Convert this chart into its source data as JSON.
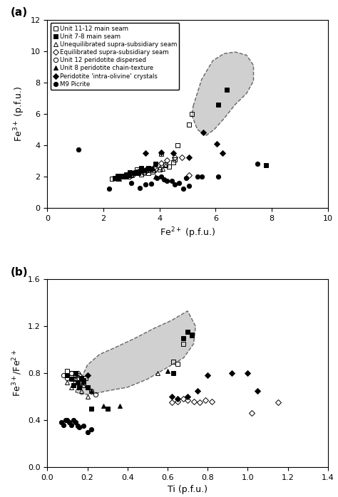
{
  "title_a": "(a)",
  "title_b": "(b)",
  "xlabel_a": "Fe$^{2+}$ (p.f.u.)",
  "ylabel_a": "Fe$^{3+}$ (p.f.u.)",
  "xlabel_b": "Ti (p.f.u.)",
  "ylabel_b": "Fe$^{3+}$/Fe$^{2+}$",
  "xlim_a": [
    0,
    10
  ],
  "ylim_a": [
    0,
    12
  ],
  "xlim_b": [
    0,
    1.4
  ],
  "ylim_b": [
    0,
    1.6
  ],
  "xticks_a": [
    0,
    2,
    4,
    6,
    8,
    10
  ],
  "yticks_a": [
    0,
    2,
    4,
    6,
    8,
    10,
    12
  ],
  "xticks_b": [
    0.0,
    0.2,
    0.4,
    0.6,
    0.8,
    1.0,
    1.2,
    1.4
  ],
  "yticks_b": [
    0.0,
    0.4,
    0.8,
    1.2,
    1.6
  ],
  "unit1112_a": [
    [
      2.3,
      1.85
    ],
    [
      2.5,
      2.05
    ],
    [
      2.65,
      2.05
    ],
    [
      2.8,
      2.15
    ],
    [
      2.9,
      2.0
    ],
    [
      3.05,
      2.2
    ],
    [
      3.2,
      2.45
    ],
    [
      3.35,
      2.15
    ],
    [
      3.6,
      2.2
    ],
    [
      3.75,
      2.3
    ],
    [
      4.0,
      2.45
    ],
    [
      4.05,
      3.45
    ],
    [
      4.2,
      2.75
    ],
    [
      4.35,
      2.65
    ],
    [
      4.5,
      2.9
    ],
    [
      4.55,
      3.1
    ],
    [
      4.65,
      4.0
    ],
    [
      5.05,
      5.3
    ],
    [
      5.15,
      6.0
    ]
  ],
  "unit78_a": [
    [
      2.4,
      1.9
    ],
    [
      2.5,
      2.0
    ],
    [
      2.65,
      2.05
    ],
    [
      2.7,
      2.0
    ],
    [
      2.85,
      2.1
    ],
    [
      2.95,
      2.25
    ],
    [
      3.05,
      2.2
    ],
    [
      3.15,
      2.25
    ],
    [
      3.25,
      2.2
    ],
    [
      3.35,
      2.55
    ],
    [
      3.45,
      2.4
    ],
    [
      3.6,
      2.55
    ],
    [
      3.7,
      2.5
    ],
    [
      3.85,
      2.8
    ],
    [
      6.1,
      6.6
    ],
    [
      6.4,
      7.55
    ],
    [
      7.8,
      2.7
    ]
  ],
  "unequil_a": [
    [
      2.5,
      1.85
    ],
    [
      2.7,
      2.05
    ],
    [
      2.8,
      2.0
    ],
    [
      3.0,
      2.15
    ],
    [
      3.2,
      2.2
    ],
    [
      3.45,
      2.3
    ],
    [
      3.6,
      2.4
    ],
    [
      3.8,
      2.4
    ],
    [
      4.0,
      2.6
    ],
    [
      4.1,
      2.5
    ],
    [
      4.2,
      2.7
    ]
  ],
  "equil_a": [
    [
      3.0,
      2.1
    ],
    [
      3.25,
      2.3
    ],
    [
      3.55,
      2.4
    ],
    [
      3.8,
      2.6
    ],
    [
      4.05,
      2.85
    ],
    [
      4.25,
      3.05
    ],
    [
      4.55,
      3.2
    ],
    [
      4.8,
      3.2
    ],
    [
      5.05,
      2.1
    ]
  ],
  "unit12_a": [
    [
      2.45,
      1.9
    ],
    [
      2.6,
      2.0
    ],
    [
      2.75,
      2.05
    ],
    [
      2.85,
      2.05
    ],
    [
      2.95,
      2.2
    ],
    [
      3.05,
      2.1
    ],
    [
      3.2,
      2.3
    ],
    [
      3.3,
      2.3
    ],
    [
      3.45,
      2.2
    ],
    [
      3.55,
      2.5
    ],
    [
      3.65,
      2.4
    ],
    [
      3.85,
      2.5
    ]
  ],
  "unit8_a": [
    [
      2.55,
      1.85
    ],
    [
      2.75,
      2.0
    ],
    [
      2.95,
      2.1
    ],
    [
      3.15,
      2.2
    ],
    [
      3.35,
      2.4
    ],
    [
      3.85,
      2.0
    ]
  ],
  "intra_a": [
    [
      3.5,
      3.5
    ],
    [
      4.05,
      3.55
    ],
    [
      4.5,
      3.5
    ],
    [
      5.05,
      3.2
    ],
    [
      5.55,
      4.8
    ],
    [
      6.05,
      4.1
    ],
    [
      6.25,
      3.5
    ]
  ],
  "m9_a": [
    [
      1.1,
      3.7
    ],
    [
      2.2,
      1.2
    ],
    [
      3.0,
      1.6
    ],
    [
      3.3,
      1.25
    ],
    [
      3.5,
      1.5
    ],
    [
      3.7,
      1.55
    ],
    [
      3.9,
      1.9
    ],
    [
      4.05,
      2.0
    ],
    [
      4.15,
      1.8
    ],
    [
      4.25,
      1.7
    ],
    [
      4.45,
      1.7
    ],
    [
      4.55,
      1.5
    ],
    [
      4.7,
      1.6
    ],
    [
      4.85,
      1.2
    ],
    [
      4.95,
      1.9
    ],
    [
      5.05,
      1.4
    ],
    [
      5.35,
      2.0
    ],
    [
      5.5,
      2.0
    ],
    [
      6.1,
      2.0
    ],
    [
      7.5,
      2.8
    ]
  ],
  "unit1112_b": [
    [
      0.1,
      0.82
    ],
    [
      0.12,
      0.8
    ],
    [
      0.13,
      0.75
    ],
    [
      0.14,
      0.78
    ],
    [
      0.15,
      0.76
    ],
    [
      0.17,
      0.73
    ],
    [
      0.18,
      0.7
    ],
    [
      0.19,
      0.76
    ],
    [
      0.2,
      0.68
    ],
    [
      0.63,
      0.9
    ],
    [
      0.65,
      0.88
    ],
    [
      0.68,
      1.05
    ],
    [
      0.7,
      1.15
    ],
    [
      0.72,
      1.12
    ]
  ],
  "unit78_b": [
    [
      0.1,
      0.78
    ],
    [
      0.12,
      0.75
    ],
    [
      0.13,
      0.7
    ],
    [
      0.14,
      0.8
    ],
    [
      0.15,
      0.72
    ],
    [
      0.16,
      0.68
    ],
    [
      0.17,
      0.76
    ],
    [
      0.18,
      0.74
    ],
    [
      0.2,
      0.68
    ],
    [
      0.22,
      0.5
    ],
    [
      0.3,
      0.5
    ],
    [
      0.63,
      0.8
    ],
    [
      0.68,
      1.1
    ],
    [
      0.7,
      1.15
    ],
    [
      0.72,
      1.13
    ]
  ],
  "unequil_b": [
    [
      0.1,
      0.72
    ],
    [
      0.12,
      0.68
    ],
    [
      0.13,
      0.7
    ],
    [
      0.14,
      0.76
    ],
    [
      0.15,
      0.72
    ],
    [
      0.16,
      0.68
    ],
    [
      0.17,
      0.65
    ],
    [
      0.18,
      0.7
    ],
    [
      0.2,
      0.6
    ],
    [
      0.55,
      0.8
    ]
  ],
  "equil_b": [
    [
      0.62,
      0.55
    ],
    [
      0.65,
      0.56
    ],
    [
      0.68,
      0.58
    ],
    [
      0.7,
      0.57
    ],
    [
      0.73,
      0.56
    ],
    [
      0.76,
      0.55
    ],
    [
      0.79,
      0.57
    ],
    [
      0.82,
      0.56
    ],
    [
      1.02,
      0.46
    ],
    [
      1.15,
      0.55
    ]
  ],
  "unit12_b": [
    [
      0.08,
      0.78
    ],
    [
      0.1,
      0.76
    ],
    [
      0.12,
      0.8
    ],
    [
      0.13,
      0.75
    ],
    [
      0.14,
      0.72
    ],
    [
      0.15,
      0.8
    ],
    [
      0.16,
      0.78
    ],
    [
      0.17,
      0.75
    ],
    [
      0.18,
      0.72
    ],
    [
      0.2,
      0.68
    ],
    [
      0.22,
      0.65
    ],
    [
      0.24,
      0.62
    ]
  ],
  "unit8_b": [
    [
      0.22,
      0.65
    ],
    [
      0.28,
      0.52
    ],
    [
      0.36,
      0.52
    ],
    [
      0.6,
      0.82
    ]
  ],
  "intra_b": [
    [
      0.2,
      0.78
    ],
    [
      0.62,
      0.6
    ],
    [
      0.65,
      0.58
    ],
    [
      0.7,
      0.6
    ],
    [
      0.75,
      0.65
    ],
    [
      0.8,
      0.78
    ],
    [
      0.92,
      0.8
    ],
    [
      1.0,
      0.8
    ],
    [
      1.05,
      0.65
    ]
  ],
  "m9_b": [
    [
      0.07,
      0.38
    ],
    [
      0.08,
      0.36
    ],
    [
      0.09,
      0.4
    ],
    [
      0.1,
      0.4
    ],
    [
      0.11,
      0.38
    ],
    [
      0.12,
      0.36
    ],
    [
      0.13,
      0.4
    ],
    [
      0.14,
      0.38
    ],
    [
      0.15,
      0.35
    ],
    [
      0.16,
      0.34
    ],
    [
      0.18,
      0.35
    ],
    [
      0.2,
      0.3
    ],
    [
      0.22,
      0.32
    ]
  ],
  "shading_color": "#d0d0d0",
  "shading_edge": "#666666",
  "shade_a_x": [
    5.2,
    5.5,
    5.9,
    6.3,
    6.7,
    7.1,
    7.35,
    7.35,
    7.1,
    6.7,
    6.3,
    5.95,
    5.65,
    5.35,
    5.15,
    5.2
  ],
  "shade_a_y": [
    6.5,
    8.2,
    9.4,
    9.85,
    9.95,
    9.75,
    9.1,
    8.1,
    7.3,
    6.6,
    5.7,
    5.0,
    4.6,
    5.0,
    5.9,
    6.5
  ],
  "shade_b_x": [
    0.14,
    0.16,
    0.2,
    0.26,
    0.34,
    0.44,
    0.53,
    0.62,
    0.7,
    0.74,
    0.73,
    0.68,
    0.6,
    0.5,
    0.4,
    0.3,
    0.22,
    0.17,
    0.14
  ],
  "shade_b_y": [
    0.64,
    0.72,
    0.87,
    0.96,
    1.02,
    1.1,
    1.18,
    1.25,
    1.33,
    1.2,
    1.05,
    0.93,
    0.85,
    0.75,
    0.68,
    0.65,
    0.62,
    0.62,
    0.64
  ],
  "legend_items": [
    "Unit 11-12 main seam",
    "Unit 7-8 main seam",
    "Unequilibrated supra-subsidiary seam",
    "Equilibrated supra-subsidiary seam",
    "Unit 12 peridotite dispersed",
    "Unit 8 peridotite chain-texture",
    "Peridotite 'intra-olivine' crystals",
    "M9 Picrite"
  ]
}
